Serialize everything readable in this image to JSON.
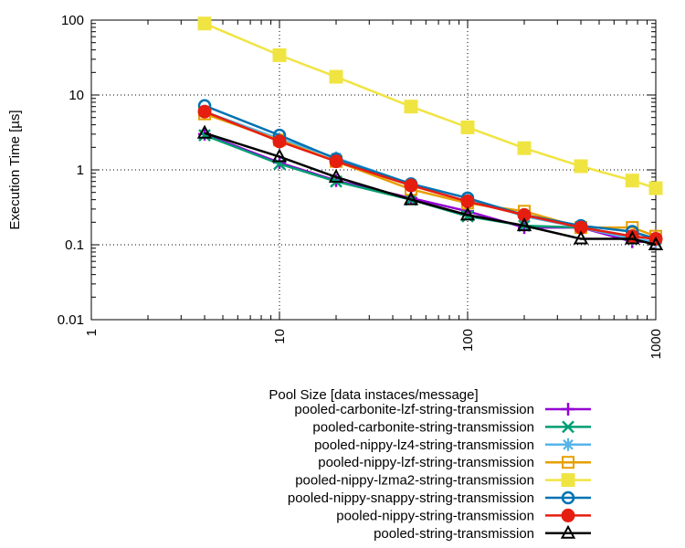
{
  "chart_data": {
    "type": "line",
    "xlabel": "Pool Size [data instaces/message]",
    "ylabel": "Execution Time [µs]",
    "xscale": "log",
    "yscale": "log",
    "xlim": [
      1,
      1000
    ],
    "ylim": [
      0.01,
      100
    ],
    "grid": true,
    "legend_position": "bottom-right",
    "x_ticks": [
      "1",
      "10",
      "100",
      "1000"
    ],
    "y_ticks": [
      "0.01",
      "0.1",
      "1",
      "10",
      "100"
    ],
    "x": [
      4,
      10,
      20,
      50,
      100,
      200,
      400,
      750,
      1000
    ],
    "series": [
      {
        "name": "pooled-carbonite-lzf-string-transmission",
        "color": "#9400d3",
        "marker": "plus",
        "values": [
          3.0,
          1.25,
          0.72,
          0.42,
          0.28,
          0.17,
          0.17,
          0.11,
          0.11
        ]
      },
      {
        "name": "pooled-carbonite-string-transmission",
        "color": "#009e73",
        "marker": "cross",
        "values": [
          2.9,
          1.2,
          0.7,
          0.4,
          0.24,
          0.18,
          0.17,
          0.13,
          0.12
        ]
      },
      {
        "name": "pooled-nippy-lz4-string-transmission",
        "color": "#56b4e9",
        "marker": "star",
        "values": [
          6.0,
          2.6,
          1.45,
          0.65,
          0.42,
          0.24,
          0.17,
          0.12,
          0.11
        ]
      },
      {
        "name": "pooled-nippy-lzf-string-transmission",
        "color": "#e69f00",
        "marker": "square-open",
        "values": [
          5.6,
          2.5,
          1.3,
          0.55,
          0.36,
          0.28,
          0.17,
          0.17,
          0.13
        ]
      },
      {
        "name": "pooled-nippy-lzma2-string-transmission",
        "color": "#f0e442",
        "marker": "square-filled",
        "values": [
          90,
          34,
          17.5,
          7.0,
          3.7,
          1.95,
          1.12,
          0.72,
          0.57
        ]
      },
      {
        "name": "pooled-nippy-snappy-string-transmission",
        "color": "#0072b2",
        "marker": "circle-open",
        "values": [
          7.2,
          2.9,
          1.4,
          0.65,
          0.42,
          0.25,
          0.18,
          0.15,
          0.12
        ]
      },
      {
        "name": "pooled-nippy-string-transmission",
        "color": "#e51e10",
        "marker": "circle-filled",
        "values": [
          6.0,
          2.4,
          1.3,
          0.62,
          0.38,
          0.25,
          0.17,
          0.13,
          0.12
        ]
      },
      {
        "name": "pooled-string-transmission",
        "color": "#000000",
        "marker": "triangle-open",
        "values": [
          3.1,
          1.5,
          0.8,
          0.4,
          0.25,
          0.18,
          0.12,
          0.12,
          0.1
        ]
      }
    ]
  }
}
